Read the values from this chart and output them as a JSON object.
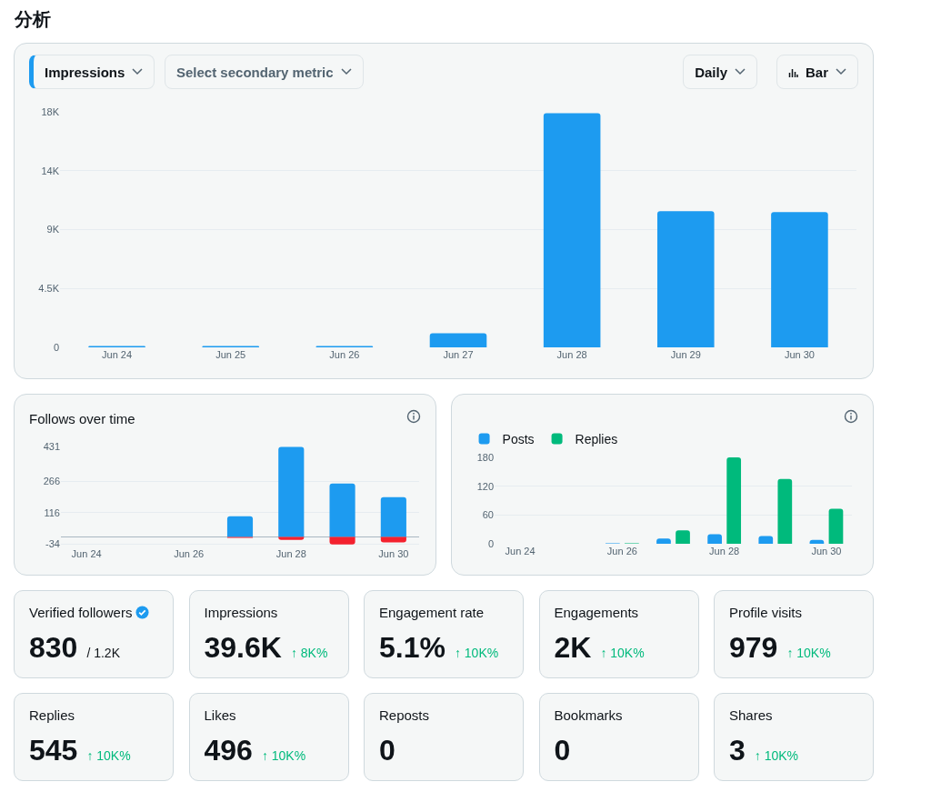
{
  "chart_data": [
    {
      "type": "bar",
      "title": "Impressions",
      "annotations": [
        "分析",
        "Select secondary metric",
        "Daily",
        "Bar"
      ],
      "categories": [
        "Jun 24",
        "Jun 25",
        "Jun 26",
        "Jun 27",
        "Jun 28",
        "Jun 29",
        "Jun 30"
      ],
      "values": [
        100,
        100,
        100,
        1080,
        17900,
        10400,
        10340
      ],
      "color": "#1d9bf0",
      "ylim": [
        0,
        18000
      ],
      "yticks": [
        0,
        {
          "value": 4500,
          "label": "4.5K"
        },
        {
          "value": 9000,
          "label": "9K"
        },
        {
          "value": 13500,
          "label": "14K"
        },
        {
          "value": 18000,
          "label": "18K"
        }
      ],
      "grid": "y"
    },
    {
      "type": "bar",
      "title": "Follows over time",
      "stacked": true,
      "categories": [
        "Jun 24",
        null,
        "Jun 26",
        null,
        "Jun 28",
        null,
        "Jun 30"
      ],
      "series": [
        {
          "color": "#1d9bf0",
          "values": [
            null,
            null,
            null,
            99,
            429,
            255,
            190
          ]
        },
        {
          "color": "#f4212e",
          "values": [
            null,
            null,
            null,
            -4,
            -14,
            -35,
            -25
          ]
        }
      ],
      "ylim": [
        -45,
        431
      ],
      "yticks": [
        -34,
        116,
        266,
        431
      ],
      "grid": "y"
    },
    {
      "type": "bar",
      "legend": "top left",
      "categories": [
        "Jun 24",
        null,
        "Jun 26",
        null,
        "Jun 28",
        null,
        "Jun 30"
      ],
      "series": [
        {
          "name": "Posts",
          "color": "#1d9bf0",
          "values": [
            null,
            null,
            1,
            11,
            20,
            16,
            8
          ]
        },
        {
          "name": "Replies",
          "color": "#00ba7c",
          "values": [
            null,
            null,
            1,
            28,
            180,
            135,
            73
          ]
        }
      ],
      "ylim": [
        0,
        180
      ],
      "yticks": [
        0,
        60,
        120,
        180
      ],
      "grid": "y"
    },
    {
      "type": "other",
      "categories": [
        "Verified followers",
        "Impressions",
        "Engagement rate",
        "Engagements",
        "Profile visits",
        "Replies",
        "Likes",
        "Reposts",
        "Bookmarks",
        "Shares"
      ],
      "values": [
        830,
        39600,
        5.1,
        2000,
        979,
        545,
        496,
        0,
        0,
        3
      ],
      "value_labels": [
        "830",
        "39.6K",
        "5.1%",
        "2K",
        "979",
        "545",
        "496",
        "0",
        "0",
        "3"
      ],
      "annotations": [
        {
          "text": "/ 1.2K",
          "x": "Verified followers"
        },
        {
          "text": "↑ 8K%",
          "x": "Impressions"
        },
        {
          "text": "↑ 10K%",
          "x": "Engagement rate"
        },
        {
          "text": "↑ 10K%",
          "x": "Engagements"
        },
        {
          "text": "↑ 10K%",
          "x": "Profile visits"
        },
        {
          "text": "↑ 10K%",
          "x": "Replies"
        },
        {
          "text": "↑ 10K%",
          "x": "Likes"
        },
        {
          "text": "↑ 10K%",
          "x": "Shares"
        }
      ]
    }
  ]
}
